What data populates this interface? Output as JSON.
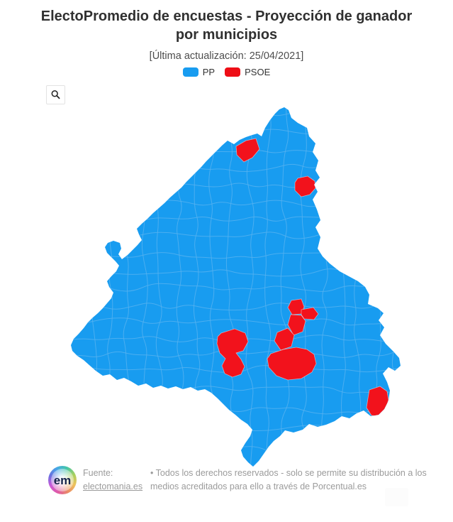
{
  "header": {
    "title": "ElectoPromedio de encuestas - Proyección de ganador por municipios",
    "subtitle": "[Última actualización: 25/04/2021]"
  },
  "legend": {
    "items": [
      {
        "label": "PP",
        "color": "#189CF0"
      },
      {
        "label": "PSOE",
        "color": "#EE0E16"
      }
    ]
  },
  "toolbar": {
    "zoom_button_icon": "magnifier-icon"
  },
  "map": {
    "type": "choropleth",
    "region": "Comunidad de Madrid",
    "pp_color": "#189CF0",
    "psoe_color": "#F2121C",
    "border_color": "#55B1F0",
    "psoe_patches": 9
  },
  "footer": {
    "logo_text": "em",
    "source_label": "Fuente:",
    "source_link": "electomania.es",
    "rights_text": "• Todos los derechos reservados - solo se permite su distribución a los medios acreditados para ello a través de Porcentual.es"
  }
}
